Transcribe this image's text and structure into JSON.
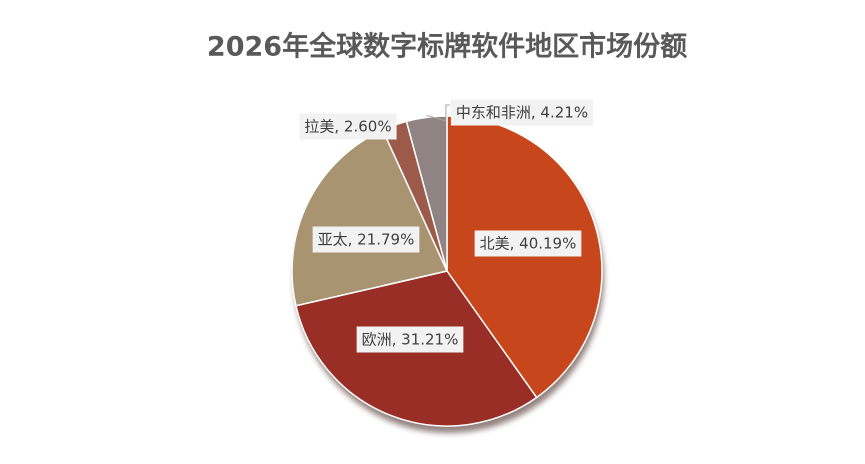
{
  "chart_data": {
    "type": "pie",
    "title": "2026年全球数字标牌软件地区市场份额",
    "categories": [
      "北美",
      "欧洲",
      "亚太",
      "拉美",
      "中东和非洲"
    ],
    "values": [
      40.19,
      31.21,
      21.79,
      2.6,
      4.21
    ],
    "value_labels": [
      "北美, 40.19%",
      "欧洲, 31.21%",
      "亚太, 21.79%",
      "拉美, 2.60%",
      "中东和非洲, 4.21%"
    ],
    "colors": [
      "#c8461b",
      "#982e25",
      "#a89470",
      "#9b5a4a",
      "#908383"
    ]
  }
}
